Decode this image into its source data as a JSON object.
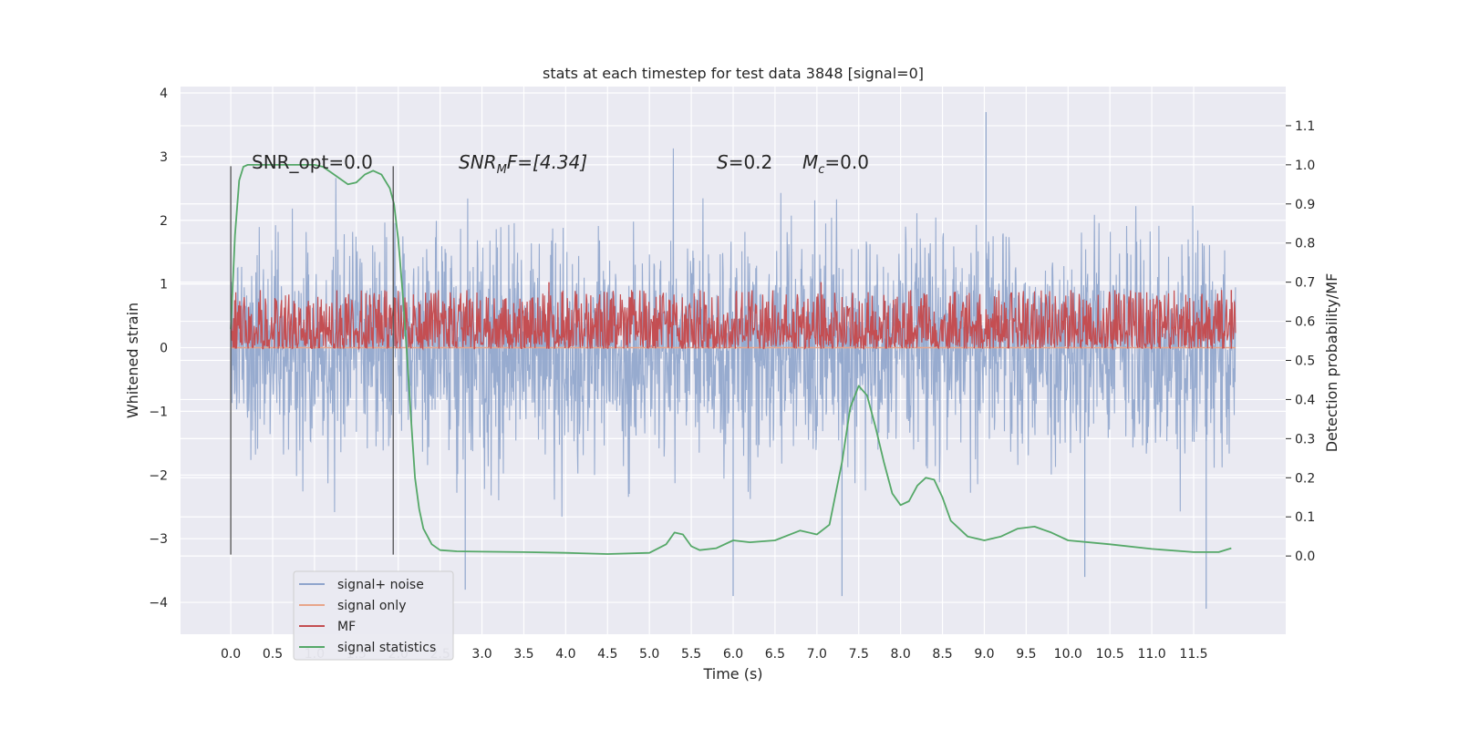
{
  "chart_data": {
    "type": "line",
    "title": "stats at each timestep for test data 3848 [signal=0]",
    "xlabel": "Time (s)",
    "ylabel_left": "Whitened strain",
    "ylabel_right": "Detection probability/MF",
    "xlim": [
      -0.6,
      12.6
    ],
    "ylim_left": [
      -4.5,
      4.1
    ],
    "ylim_right": [
      -0.2,
      1.2
    ],
    "x_ticks": [
      "0.0",
      "0.5",
      "1.0",
      "1.5",
      "2.0",
      "2.5",
      "3.0",
      "3.5",
      "4.0",
      "4.5",
      "5.0",
      "5.5",
      "6.0",
      "6.5",
      "7.0",
      "7.5",
      "8.0",
      "8.5",
      "9.0",
      "9.5",
      "10.0",
      "10.5",
      "11.0",
      "11.5"
    ],
    "y_ticks_left": [
      "4",
      "3",
      "2",
      "1",
      "0",
      "−1",
      "−2",
      "−3",
      "−4"
    ],
    "y_ticks_right": [
      "1.1",
      "1.0",
      "0.9",
      "0.8",
      "0.7",
      "0.6",
      "0.5",
      "0.4",
      "0.3",
      "0.2",
      "0.1",
      "0.0"
    ],
    "grid": true,
    "annotations": {
      "snr_opt": "SNR_opt=0.0",
      "snr_mf_base": "SNR",
      "snr_mf_sub": "M",
      "snr_mf_rest": "F=[4.34]",
      "s_var": "S",
      "s_val": "=0.2",
      "mc_var": "M",
      "mc_sub": "c",
      "mc_val": "=0.0"
    },
    "vertical_lines": [
      {
        "x": 0.0,
        "y_range": [
          -3.25,
          2.85
        ]
      },
      {
        "x": 1.94,
        "y_range": [
          -3.25,
          2.85
        ]
      }
    ],
    "legend": {
      "placement": "lower-left",
      "entries": [
        {
          "label": "signal+ noise",
          "color": "#8fa5cc"
        },
        {
          "label": "signal only",
          "color": "#e8a58a"
        },
        {
          "label": "MF",
          "color": "#c44e52"
        },
        {
          "label": "signal statistics",
          "color": "#55a868"
        }
      ]
    },
    "series": [
      {
        "name": "signal+ noise",
        "axis": "left",
        "color": "#8fa5cc",
        "x_range": [
          0.0,
          12.0
        ],
        "envelope_approx": [
          -3.3,
          3.4
        ],
        "extremes": [
          [
            2.8,
            -3.8
          ],
          [
            7.3,
            -3.9
          ],
          [
            9.02,
            3.7
          ],
          [
            11.65,
            -4.1
          ],
          [
            6.0,
            -3.9
          ],
          [
            10.2,
            -3.6
          ]
        ]
      },
      {
        "name": "signal only",
        "axis": "left",
        "color": "#e8a58a",
        "x_range": [
          0.0,
          12.0
        ],
        "values_approx": [
          0.0
        ]
      },
      {
        "name": "MF",
        "axis": "right",
        "color": "#c44e52",
        "x_range": [
          0.0,
          12.0
        ],
        "band_approx": [
          0.53,
          0.68
        ],
        "peaks": [
          [
            3.8,
            0.7
          ],
          [
            7.05,
            0.7
          ],
          [
            11.95,
            0.68
          ]
        ]
      },
      {
        "name": "signal statistics",
        "axis": "right",
        "color": "#55a868",
        "x": [
          0.0,
          0.05,
          0.1,
          0.15,
          0.2,
          0.4,
          0.6,
          0.8,
          1.0,
          1.1,
          1.2,
          1.3,
          1.4,
          1.5,
          1.6,
          1.7,
          1.8,
          1.9,
          1.95,
          2.0,
          2.05,
          2.1,
          2.15,
          2.2,
          2.25,
          2.3,
          2.4,
          2.5,
          2.7,
          3.0,
          3.5,
          4.0,
          4.5,
          5.0,
          5.2,
          5.3,
          5.4,
          5.5,
          5.6,
          5.8,
          6.0,
          6.2,
          6.5,
          6.8,
          7.0,
          7.15,
          7.3,
          7.4,
          7.5,
          7.6,
          7.7,
          7.8,
          7.9,
          8.0,
          8.1,
          8.2,
          8.3,
          8.4,
          8.5,
          8.6,
          8.8,
          9.0,
          9.2,
          9.4,
          9.6,
          9.8,
          10.0,
          10.5,
          11.0,
          11.5,
          11.8,
          11.95
        ],
        "values": [
          0.58,
          0.82,
          0.96,
          0.995,
          1.0,
          1.0,
          1.0,
          1.0,
          1.0,
          0.995,
          0.98,
          0.965,
          0.95,
          0.955,
          0.975,
          0.985,
          0.975,
          0.94,
          0.9,
          0.81,
          0.68,
          0.53,
          0.36,
          0.2,
          0.12,
          0.07,
          0.03,
          0.015,
          0.012,
          0.011,
          0.01,
          0.008,
          0.005,
          0.008,
          0.03,
          0.06,
          0.055,
          0.025,
          0.015,
          0.02,
          0.04,
          0.035,
          0.04,
          0.065,
          0.055,
          0.08,
          0.24,
          0.38,
          0.435,
          0.41,
          0.33,
          0.24,
          0.16,
          0.13,
          0.14,
          0.18,
          0.2,
          0.195,
          0.15,
          0.09,
          0.05,
          0.04,
          0.05,
          0.07,
          0.075,
          0.06,
          0.04,
          0.03,
          0.018,
          0.01,
          0.01,
          0.02
        ]
      }
    ]
  }
}
